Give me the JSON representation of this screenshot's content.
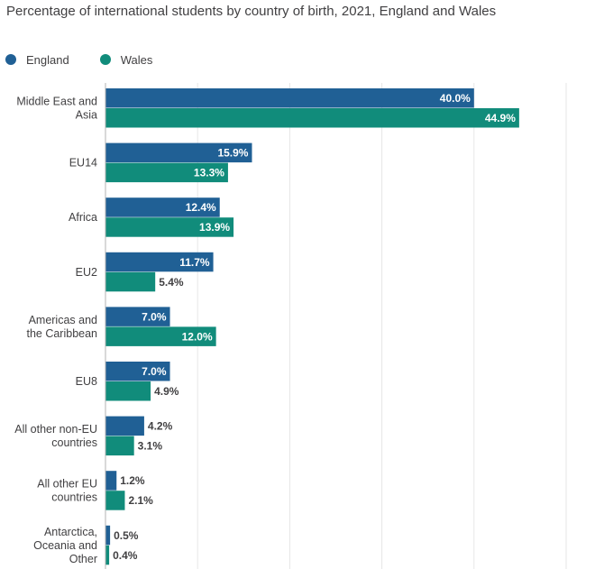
{
  "chart_data": {
    "type": "bar",
    "orientation": "horizontal",
    "title": "Percentage of international students by country of birth, 2021, England and Wales",
    "categories": [
      [
        "Middle East and",
        "Asia"
      ],
      [
        "EU14"
      ],
      [
        "Africa"
      ],
      [
        "EU2"
      ],
      [
        "Americas and",
        "the Caribbean"
      ],
      [
        "EU8"
      ],
      [
        "All other non-EU",
        "countries"
      ],
      [
        "All other EU",
        "countries"
      ],
      [
        "Antarctica,",
        "Oceania and",
        "Other"
      ]
    ],
    "series": [
      {
        "name": "England",
        "color": "#206095",
        "values": [
          40.0,
          15.9,
          12.4,
          11.7,
          7.0,
          7.0,
          4.2,
          1.2,
          0.5
        ],
        "labels": [
          "40.0%",
          "15.9%",
          "12.4%",
          "11.7%",
          "7.0%",
          "7.0%",
          "4.2%",
          "1.2%",
          "0.5%"
        ]
      },
      {
        "name": "Wales",
        "color": "#118c7b",
        "values": [
          44.9,
          13.3,
          13.9,
          5.4,
          12.0,
          4.9,
          3.1,
          2.1,
          0.4
        ],
        "labels": [
          "44.9%",
          "13.3%",
          "13.9%",
          "5.4%",
          "12.0%",
          "4.9%",
          "3.1%",
          "2.1%",
          "0.4%"
        ]
      }
    ],
    "xlim": [
      0,
      50
    ],
    "grid": true,
    "legend_position": "top-left"
  }
}
